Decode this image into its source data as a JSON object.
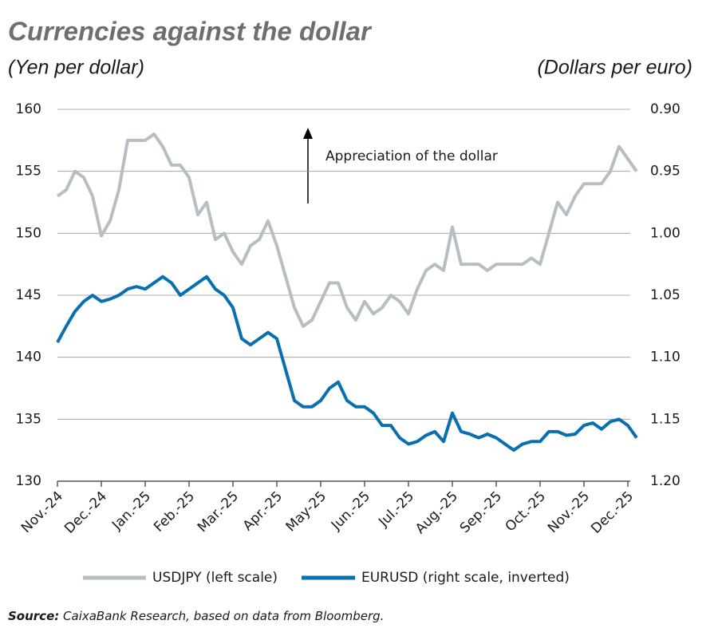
{
  "chart_data": {
    "type": "line",
    "title": "Currencies against the dollar",
    "y_label": "(Yen per dollar)",
    "y2_label": "(Dollars per euro)",
    "annotation": "Appreciation of the dollar",
    "source": {
      "label": "Source:",
      "text": "CaixaBank Research, based on data from Bloomberg."
    },
    "categories": [
      "Nov.-24",
      null,
      null,
      null,
      null,
      "Dec.-24",
      null,
      null,
      null,
      null,
      "Jan.-25",
      null,
      null,
      null,
      null,
      "Feb.-25",
      null,
      null,
      null,
      null,
      "Mar.-25",
      null,
      null,
      null,
      null,
      "Apr.-25",
      null,
      null,
      null,
      null,
      "May-25",
      null,
      null,
      null,
      null,
      "Jun.-25",
      null,
      null,
      null,
      null,
      "Jul.-25",
      null,
      null,
      null,
      null,
      "Aug.-25",
      null,
      null,
      null,
      null,
      "Sep.-25",
      null,
      null,
      null,
      null,
      "Oct.-25",
      null,
      null,
      null,
      null,
      "Nov.-25",
      null,
      null,
      null,
      null,
      "Dec.-25",
      null
    ],
    "series": [
      {
        "name": "USDJPY (left scale)",
        "color": "#b5bfc3",
        "values": [
          153,
          153.5,
          155,
          154.5,
          153,
          149.8,
          151,
          153.5,
          157.5,
          157.5,
          157.5,
          158,
          157,
          155.5,
          155.5,
          154.5,
          151.5,
          152.5,
          149.5,
          150,
          148.5,
          147.5,
          149,
          149.5,
          151,
          149,
          146.5,
          144,
          142.5,
          143,
          144.5,
          146,
          146,
          144,
          143,
          144.5,
          143.5,
          144,
          145,
          144.5,
          143.5,
          145.5,
          147,
          147.5,
          147,
          150.5,
          147.5,
          147.5,
          147.5,
          147,
          147.5,
          147.5,
          147.5,
          147.5,
          148,
          147.5,
          150,
          152.5,
          151.5,
          153,
          154,
          154,
          154,
          155,
          157,
          156,
          155
        ]
      },
      {
        "name": "EURUSD (right scale, inverted)",
        "color": "#0a6fb0",
        "axis": "y2",
        "values": [
          1.088,
          1.075,
          1.063,
          1.055,
          1.05,
          1.055,
          1.053,
          1.05,
          1.045,
          1.043,
          1.045,
          1.04,
          1.035,
          1.04,
          1.05,
          1.045,
          1.04,
          1.035,
          1.045,
          1.05,
          1.06,
          1.085,
          1.09,
          1.085,
          1.08,
          1.085,
          1.11,
          1.135,
          1.14,
          1.14,
          1.135,
          1.125,
          1.12,
          1.135,
          1.14,
          1.14,
          1.145,
          1.155,
          1.155,
          1.165,
          1.17,
          1.168,
          1.163,
          1.16,
          1.168,
          1.145,
          1.16,
          1.162,
          1.165,
          1.162,
          1.165,
          1.17,
          1.175,
          1.17,
          1.168,
          1.168,
          1.16,
          1.16,
          1.163,
          1.162,
          1.155,
          1.153,
          1.158,
          1.152,
          1.15,
          1.155,
          1.165
        ]
      }
    ],
    "ylim": [
      130,
      160
    ],
    "yticks": [
      130,
      135,
      140,
      145,
      150,
      155,
      160
    ],
    "y2lim": [
      1.2,
      0.9
    ],
    "y2ticks": [
      {
        "value": 1.2,
        "label": "1.20"
      },
      1.15,
      {
        "value": 1.1,
        "label": "1.10"
      },
      1.05,
      {
        "value": 1.0,
        "label": "1.00"
      },
      0.95,
      {
        "value": 0.9,
        "label": "0.90"
      }
    ],
    "grid": true
  }
}
